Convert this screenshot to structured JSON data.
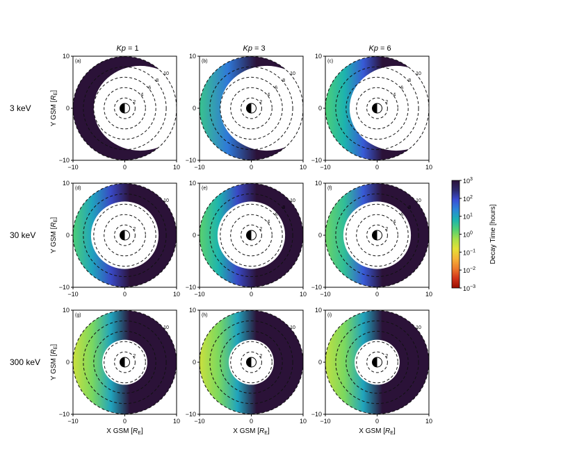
{
  "chart_data": {
    "type": "heatmap",
    "layout": "3x3 panel grid",
    "columns": [
      {
        "prefix": "Kp",
        "suffix": " = 1"
      },
      {
        "prefix": "Kp",
        "suffix": " = 3"
      },
      {
        "prefix": "Kp",
        "suffix": " = 6"
      }
    ],
    "rows": [
      "3 keV",
      "30 keV",
      "300 keV"
    ],
    "x_axis": {
      "label_text": "X GSM [",
      "label_sym": "R",
      "label_sub": "E",
      "label_end": "]",
      "ticks": [
        "−10",
        "0",
        "10"
      ],
      "lim": [
        -10,
        10
      ]
    },
    "y_axis": {
      "label_text": "Y GSM [",
      "label_sym": "R",
      "label_sub": "E",
      "label_end": "]",
      "ticks": [
        "−10",
        "0",
        "10"
      ],
      "lim": [
        -10,
        10
      ]
    },
    "contour_levels": [
      2,
      4,
      6,
      8,
      10
    ],
    "colorbar": {
      "label": "Decay Time [hours]",
      "scale": "log",
      "range": [
        0.001,
        1000
      ],
      "ticks": [
        {
          "base": "10",
          "exp": "3",
          "v": 3
        },
        {
          "base": "10",
          "exp": "2",
          "v": 2
        },
        {
          "base": "10",
          "exp": "1",
          "v": 1
        },
        {
          "base": "10",
          "exp": "0",
          "v": 0
        },
        {
          "base": "10",
          "exp": "−1",
          "v": -1
        },
        {
          "base": "10",
          "exp": "−2",
          "v": -2
        },
        {
          "base": "10",
          "exp": "−3",
          "v": -3
        }
      ],
      "colors": [
        "#9a0c00",
        "#d2341a",
        "#ee7c2c",
        "#f5b437",
        "#e4e036",
        "#a6e04a",
        "#4fcf74",
        "#1bb3b0",
        "#2b86d8",
        "#3b4fd6",
        "#2e2a6e",
        "#2b1238"
      ]
    },
    "panels": [
      {
        "label": "(a)",
        "row": 0,
        "col": 0,
        "labels_shown": [
          "2",
          "4",
          "6",
          "8",
          "10"
        ],
        "outer_log10": 3,
        "gradient": [],
        "hole_r": 2.5,
        "crescent_shift": 1.3
      },
      {
        "label": "(b)",
        "row": 0,
        "col": 1,
        "labels_shown": [
          "2",
          "4",
          "6",
          "8",
          "10"
        ],
        "outer_log10": 0.5,
        "gradient": [
          0.5,
          1.5,
          3
        ],
        "hole_r": 2.5,
        "crescent_shift": 1.3
      },
      {
        "label": "(c)",
        "row": 0,
        "col": 2,
        "labels_shown": [
          "2",
          "4",
          "6",
          "8",
          "10"
        ],
        "outer_log10": 0.3,
        "gradient": [
          0.3,
          0.8,
          1.8,
          3
        ],
        "hole_r": 2.5,
        "crescent_shift": 1.6
      },
      {
        "label": "(d)",
        "row": 1,
        "col": 0,
        "labels_shown": [
          "2",
          "10"
        ],
        "outer_log10": 0.3,
        "gradient": [
          0.3,
          1,
          2,
          3
        ],
        "hole_r": 4.5,
        "crescent_shift": 0
      },
      {
        "label": "(e)",
        "row": 1,
        "col": 1,
        "labels_shown": [
          "2",
          "4",
          "6",
          "8",
          "10"
        ],
        "outer_log10": 0.2,
        "gradient": [
          0.2,
          0.8,
          2,
          3
        ],
        "hole_r": 4.5,
        "crescent_shift": 0
      },
      {
        "label": "(f)",
        "row": 1,
        "col": 2,
        "labels_shown": [
          "2",
          "4",
          "6",
          "8",
          "10"
        ],
        "outer_log10": 0.1,
        "gradient": [
          0.1,
          0.6,
          1.8,
          3
        ],
        "hole_r": 4.5,
        "crescent_shift": 0
      },
      {
        "label": "(g)",
        "row": 2,
        "col": 0,
        "labels_shown": [
          "2",
          "10"
        ],
        "outer_log10": -0.6,
        "gradient": [
          -0.6,
          0,
          1,
          3
        ],
        "hole_r": 3,
        "crescent_shift": 0
      },
      {
        "label": "(h)",
        "row": 2,
        "col": 1,
        "labels_shown": [
          "2",
          "10"
        ],
        "outer_log10": -0.6,
        "gradient": [
          -0.6,
          0,
          1,
          3
        ],
        "hole_r": 3,
        "crescent_shift": 0
      },
      {
        "label": "(i)",
        "row": 2,
        "col": 2,
        "labels_shown": [
          "2",
          "10"
        ],
        "outer_log10": -0.5,
        "gradient": [
          -0.5,
          0,
          1,
          3
        ],
        "hole_r": 3,
        "crescent_shift": 0
      }
    ]
  }
}
